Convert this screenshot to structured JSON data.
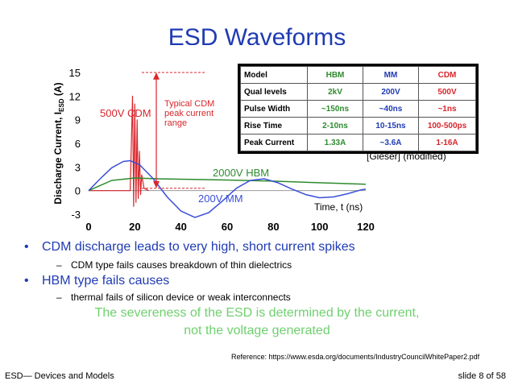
{
  "title": "ESD Waveforms",
  "chart_data": {
    "type": "line",
    "ylabel": "Discharge Current, I",
    "ylabel_sub": "ESD",
    "ylabel_unit": " (A)",
    "xlabel": "Time, t (ns)",
    "xlim": [
      0,
      120
    ],
    "ylim": [
      -3,
      15
    ],
    "x_ticks": [
      0,
      20,
      40,
      60,
      80,
      100,
      120
    ],
    "y_ticks": [
      -3,
      0,
      3,
      6,
      9,
      12,
      15
    ],
    "series": [
      {
        "name": "500V CDM",
        "color": "#d8262c",
        "x": [
          0,
          18,
          19,
          19.5,
          20,
          20.5,
          21,
          21.5,
          22,
          22.5,
          23,
          24,
          26
        ],
        "y": [
          0,
          0,
          12,
          -2,
          11,
          -1.5,
          9,
          -1,
          5,
          -0.5,
          2,
          0.3,
          0
        ]
      },
      {
        "name": "2000V HBM",
        "color": "#2e8b2e",
        "x": [
          0,
          10,
          20,
          30,
          40,
          60,
          80,
          100,
          120
        ],
        "y": [
          0,
          1.3,
          1.6,
          1.5,
          1.45,
          1.35,
          1.2,
          1.0,
          0.8
        ]
      },
      {
        "name": "200V MM",
        "color": "#3b4fd8",
        "x": [
          0,
          5,
          10,
          15,
          18,
          22,
          28,
          34,
          40,
          46,
          52,
          58,
          64,
          70,
          76,
          82,
          88,
          94,
          100,
          106,
          112,
          118,
          120
        ],
        "y": [
          0,
          1.5,
          2.9,
          3.7,
          3.8,
          3.3,
          1.5,
          -0.8,
          -2.6,
          -3.4,
          -2.8,
          -1.3,
          0.3,
          1.3,
          1.5,
          1.0,
          0.2,
          -0.5,
          -0.9,
          -0.8,
          -0.4,
          0.1,
          0.2
        ]
      }
    ],
    "annotations": {
      "peak_label": "Typical CDM\npeak current\nrange",
      "cdm_label": "500V CDM",
      "hbm_label": "2000V HBM",
      "mm_label": "200V MM"
    }
  },
  "table": {
    "headers": [
      "Model",
      "HBM",
      "MM",
      "CDM"
    ],
    "rows": [
      [
        "Qual levels",
        "2kV",
        "200V",
        "500V"
      ],
      [
        "Pulse Width",
        "~150ns",
        "~40ns",
        "~1ns"
      ],
      [
        "Rise Time",
        "2-10ns",
        "10-15ns",
        "100-500ps"
      ],
      [
        "Peak Current",
        "1.33A",
        "~3.6A",
        "1-16A"
      ]
    ],
    "source": "[Gieser] (modified)"
  },
  "bullets": [
    {
      "text": "CDM discharge leads to very high, short current spikes",
      "sub": "CDM type fails causes breakdown of thin dielectrics"
    },
    {
      "text": "HBM type fails causes",
      "sub": "thermal fails of silicon device or weak interconnects"
    }
  ],
  "conclusion": {
    "line1": "The severeness of the ESD is determined by the current,",
    "line2": "not the voltage generated"
  },
  "reference": "Reference: https://www.esda.org/documents/IndustryCouncilWhitePaper2.pdf",
  "footer": {
    "left": "ESD— Devices and Models",
    "right": "slide 8 of 58"
  }
}
